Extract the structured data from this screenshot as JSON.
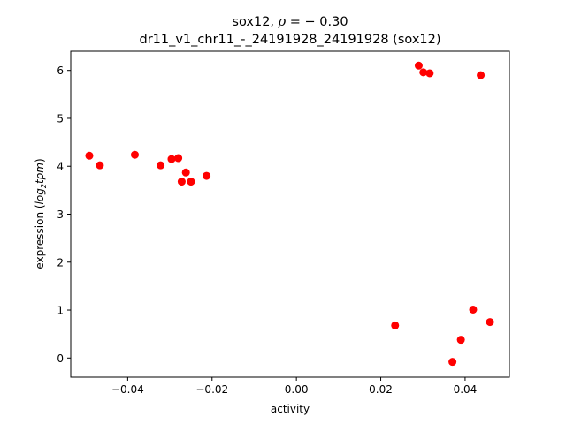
{
  "chart_data": {
    "type": "scatter",
    "title_line1_prefix": "sox12, ",
    "title_rho_symbol": "ρ",
    "title_rho_value": " = − 0.30",
    "title_line2": "dr11_v1_chr11_-_24191928_24191928 (sox12)",
    "xlabel": "activity",
    "ylabel_prefix": "expression (",
    "ylabel_log": "log",
    "ylabel_sub": "2",
    "ylabel_tpm": "tpm",
    "ylabel_suffix": ")",
    "xlim": [
      -0.0535,
      0.0505
    ],
    "ylim": [
      -0.4,
      6.4
    ],
    "x_ticks": [
      {
        "value": -0.04,
        "label": "−0.04"
      },
      {
        "value": -0.02,
        "label": "−0.02"
      },
      {
        "value": 0.0,
        "label": "0.00"
      },
      {
        "value": 0.02,
        "label": "0.02"
      },
      {
        "value": 0.04,
        "label": "0.04"
      }
    ],
    "y_ticks": [
      {
        "value": 0,
        "label": "0"
      },
      {
        "value": 1,
        "label": "1"
      },
      {
        "value": 2,
        "label": "2"
      },
      {
        "value": 3,
        "label": "3"
      },
      {
        "value": 4,
        "label": "4"
      },
      {
        "value": 5,
        "label": "5"
      },
      {
        "value": 6,
        "label": "6"
      }
    ],
    "marker_color": "#ff0000",
    "points": [
      {
        "x": -0.0491,
        "y": 4.22
      },
      {
        "x": -0.0466,
        "y": 4.02
      },
      {
        "x": -0.0383,
        "y": 4.24
      },
      {
        "x": -0.0322,
        "y": 4.02
      },
      {
        "x": -0.0296,
        "y": 4.15
      },
      {
        "x": -0.028,
        "y": 4.17
      },
      {
        "x": -0.0272,
        "y": 3.68
      },
      {
        "x": -0.0262,
        "y": 3.87
      },
      {
        "x": -0.025,
        "y": 3.68
      },
      {
        "x": -0.0213,
        "y": 3.8
      },
      {
        "x": 0.029,
        "y": 6.1
      },
      {
        "x": 0.0301,
        "y": 5.96
      },
      {
        "x": 0.0316,
        "y": 5.94
      },
      {
        "x": 0.0437,
        "y": 5.9
      },
      {
        "x": 0.0234,
        "y": 0.68
      },
      {
        "x": 0.0419,
        "y": 1.01
      },
      {
        "x": 0.0459,
        "y": 0.75
      },
      {
        "x": 0.039,
        "y": 0.38
      },
      {
        "x": 0.037,
        "y": -0.08
      }
    ]
  }
}
